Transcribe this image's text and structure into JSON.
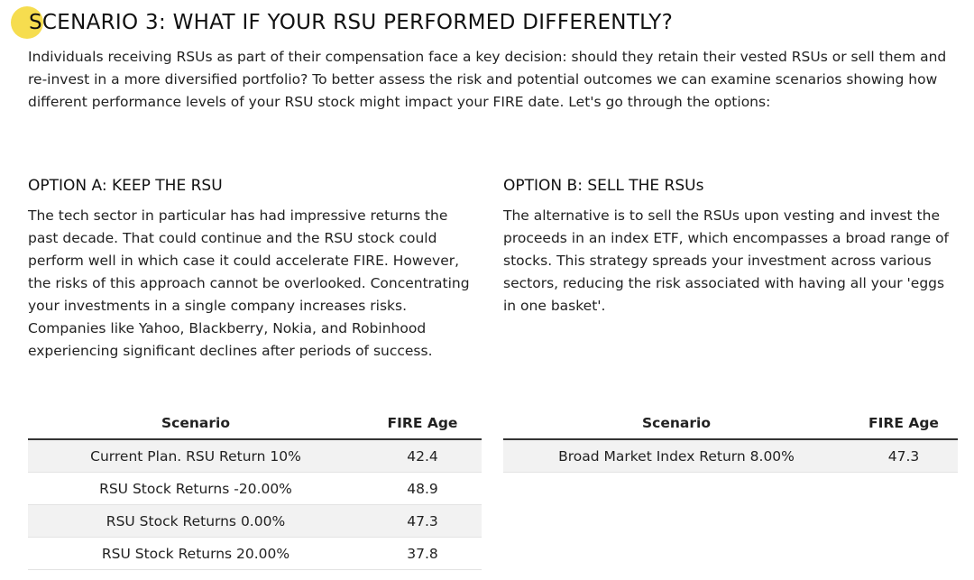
{
  "title": "SCENARIO 3: WHAT IF YOUR RSU PERFORMED DIFFERENTLY?",
  "intro": "Individuals receiving RSUs as part of their compensation face a key decision: should they retain their vested RSUs or sell them and re-invest in a more diversified portfolio? To better assess the risk and potential outcomes we can examine scenarios showing how different performance levels of your RSU stock might impact your FIRE date. Let's go through the options:",
  "option_a": {
    "heading": "OPTION A: KEEP THE RSU",
    "body": "The tech sector in particular has had impressive returns the past decade. That could continue and the RSU stock could perform well in which case it could accelerate FIRE. However, the risks of this approach cannot be overlooked. Concentrating your investments in a single company increases risks. Companies like Yahoo, Blackberry, Nokia, and Robinhood experiencing significant declines after periods of success."
  },
  "option_b": {
    "heading": "OPTION B: SELL THE RSUs",
    "body": "The alternative is to sell the RSUs upon vesting and invest the proceeds in an index ETF, which encompasses a broad range of stocks. This strategy spreads your investment across various sectors, reducing the risk associated with having all your 'eggs in one basket'."
  },
  "table_a": {
    "headers": [
      "Scenario",
      "FIRE Age"
    ],
    "rows": [
      [
        "Current Plan. RSU Return 10%",
        "42.4"
      ],
      [
        "RSU Stock Returns -20.00%",
        "48.9"
      ],
      [
        "RSU Stock Returns 0.00%",
        "47.3"
      ],
      [
        "RSU Stock Returns 20.00%",
        "37.8"
      ]
    ]
  },
  "table_b": {
    "headers": [
      "Scenario",
      "FIRE Age"
    ],
    "rows": [
      [
        "Broad Market Index Return 8.00%",
        "47.3"
      ]
    ]
  },
  "colors": {
    "highlight": "#f5d93c",
    "row_stripe": "#f2f2f2"
  }
}
